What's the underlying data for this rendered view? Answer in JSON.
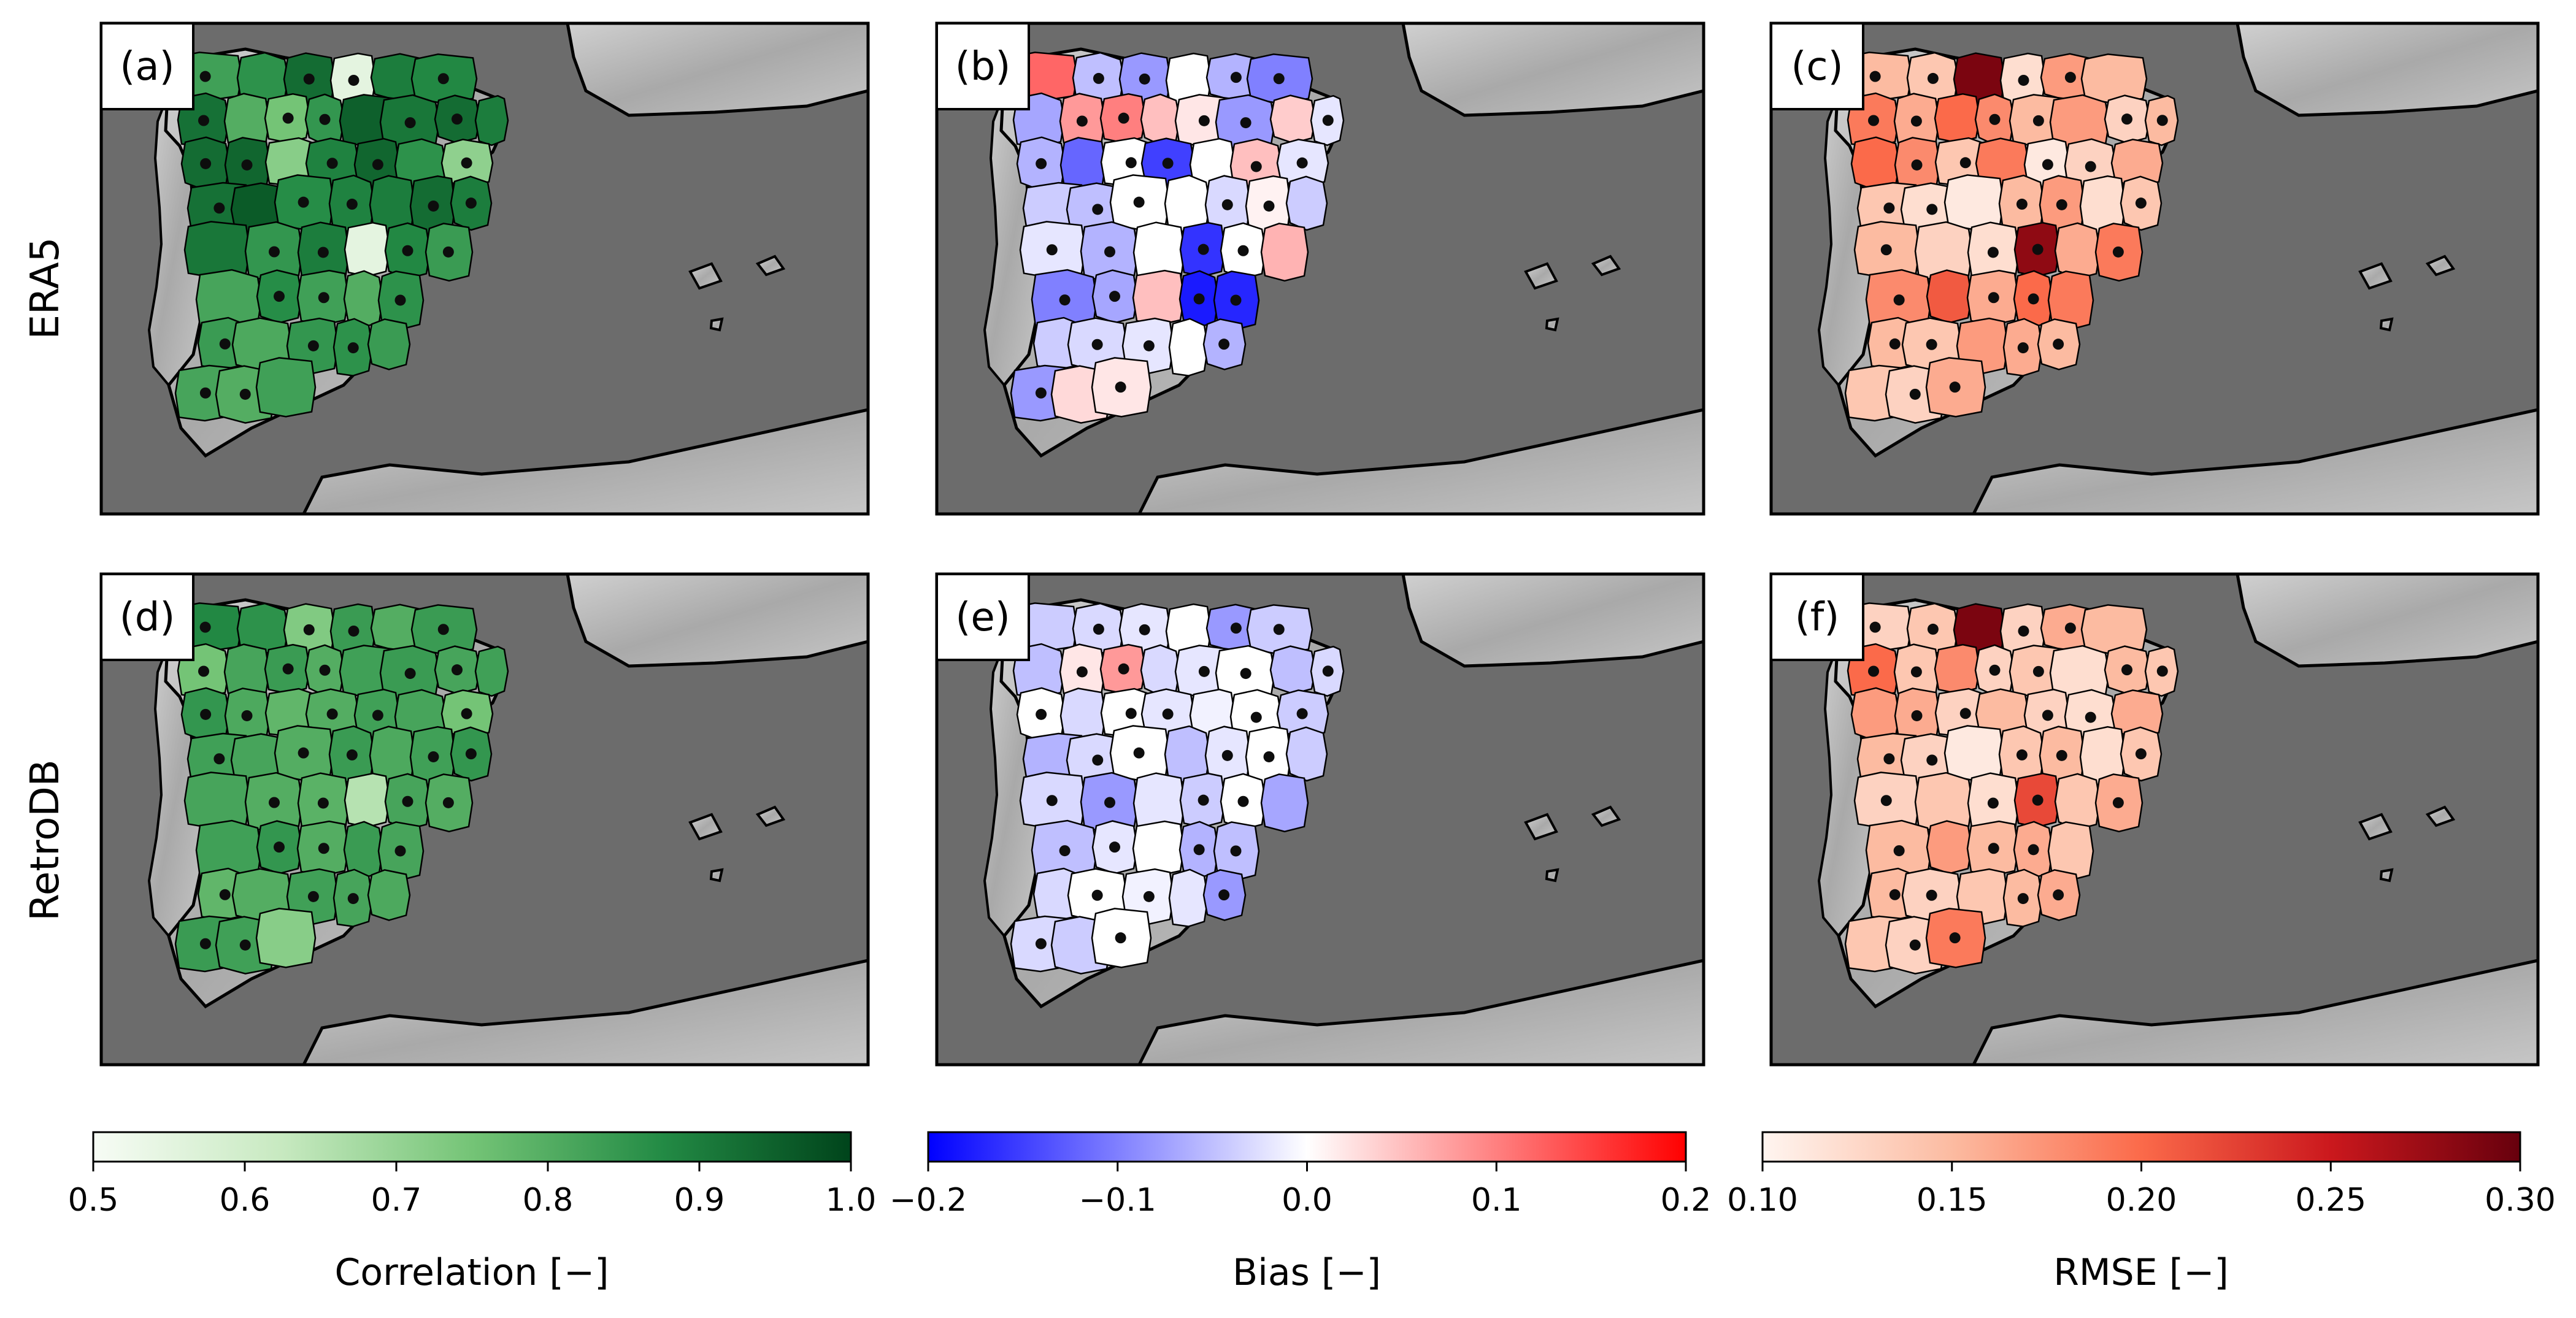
{
  "figure": {
    "row_labels": [
      "ERA5",
      "RetroDB"
    ],
    "colors": {
      "sea": "#6c6c6c",
      "land_terrain": "#b8b8b8",
      "border": "#000000",
      "dot": "#0d0d0d"
    }
  },
  "chart_data": [
    {
      "type": "heatmap",
      "title": "(a)",
      "dataset": "ERA5",
      "metric": "Correlation [−]",
      "colormap": "Greens",
      "vlim": [
        0.5,
        1.0
      ],
      "region_values": [
        0.83,
        0.86,
        0.93,
        0.55,
        0.9,
        0.88,
        0.92,
        0.8,
        0.75,
        0.85,
        0.95,
        0.91,
        0.93,
        0.9,
        0.93,
        0.94,
        0.72,
        0.89,
        0.94,
        0.86,
        0.71,
        0.92,
        0.96,
        0.87,
        0.89,
        0.9,
        0.93,
        0.9,
        0.91,
        0.85,
        0.9,
        0.55,
        0.88,
        0.84,
        0.82,
        0.87,
        0.83,
        0.8,
        0.86,
        0.84,
        0.81,
        0.85,
        0.86,
        0.84,
        0.82,
        0.8,
        0.83
      ]
    },
    {
      "type": "heatmap",
      "title": "(b)",
      "dataset": "ERA5",
      "metric": "Bias [−]",
      "colormap": "bwr",
      "vlim": [
        -0.2,
        0.2
      ],
      "region_values": [
        0.12,
        -0.05,
        -0.08,
        0.0,
        -0.06,
        -0.1,
        -0.07,
        0.08,
        0.1,
        0.05,
        0.02,
        -0.08,
        0.04,
        -0.02,
        -0.06,
        -0.12,
        0.0,
        -0.15,
        0.0,
        0.05,
        -0.02,
        -0.04,
        -0.05,
        0.0,
        0.0,
        -0.03,
        0.01,
        -0.04,
        -0.02,
        -0.06,
        0.0,
        -0.16,
        0.0,
        0.06,
        -0.1,
        -0.07,
        0.05,
        -0.18,
        -0.17,
        -0.04,
        -0.03,
        -0.02,
        0.0,
        -0.06,
        -0.08,
        0.03,
        0.02
      ]
    },
    {
      "type": "heatmap",
      "title": "(c)",
      "dataset": "ERA5",
      "metric": "RMSE [−]",
      "colormap": "Reds",
      "vlim": [
        0.1,
        0.3
      ],
      "region_values": [
        0.15,
        0.14,
        0.29,
        0.12,
        0.17,
        0.15,
        0.19,
        0.16,
        0.2,
        0.18,
        0.15,
        0.17,
        0.13,
        0.15,
        0.2,
        0.18,
        0.14,
        0.19,
        0.11,
        0.13,
        0.16,
        0.14,
        0.12,
        0.11,
        0.15,
        0.17,
        0.12,
        0.14,
        0.15,
        0.13,
        0.12,
        0.28,
        0.16,
        0.19,
        0.18,
        0.21,
        0.16,
        0.2,
        0.19,
        0.15,
        0.14,
        0.17,
        0.16,
        0.15,
        0.14,
        0.13,
        0.16
      ]
    },
    {
      "type": "heatmap",
      "title": "(d)",
      "dataset": "RetroDB",
      "metric": "Correlation [−]",
      "colormap": "Greens",
      "vlim": [
        0.5,
        1.0
      ],
      "region_values": [
        0.88,
        0.86,
        0.73,
        0.84,
        0.8,
        0.84,
        0.75,
        0.82,
        0.84,
        0.8,
        0.83,
        0.84,
        0.82,
        0.83,
        0.85,
        0.81,
        0.78,
        0.8,
        0.83,
        0.82,
        0.75,
        0.83,
        0.82,
        0.8,
        0.84,
        0.81,
        0.83,
        0.85,
        0.82,
        0.8,
        0.79,
        0.65,
        0.82,
        0.8,
        0.83,
        0.85,
        0.8,
        0.84,
        0.82,
        0.78,
        0.8,
        0.83,
        0.82,
        0.81,
        0.84,
        0.83,
        0.72
      ]
    },
    {
      "type": "heatmap",
      "title": "(e)",
      "dataset": "RetroDB",
      "metric": "Bias [−]",
      "colormap": "bwr",
      "vlim": [
        -0.2,
        0.2
      ],
      "region_values": [
        -0.04,
        -0.03,
        -0.02,
        0.0,
        -0.08,
        -0.04,
        -0.05,
        0.02,
        0.08,
        -0.03,
        -0.02,
        0.0,
        -0.05,
        -0.03,
        0.0,
        -0.03,
        0.0,
        -0.02,
        -0.01,
        0.0,
        -0.04,
        -0.06,
        -0.03,
        0.0,
        -0.05,
        -0.02,
        0.0,
        -0.04,
        -0.03,
        -0.08,
        -0.02,
        -0.04,
        0.0,
        -0.07,
        -0.05,
        -0.02,
        0.0,
        -0.06,
        -0.05,
        -0.03,
        0.0,
        -0.01,
        -0.02,
        -0.08,
        -0.03,
        -0.04,
        0.0
      ]
    },
    {
      "type": "heatmap",
      "title": "(f)",
      "dataset": "RetroDB",
      "metric": "RMSE [−]",
      "colormap": "Reds",
      "vlim": [
        0.1,
        0.3
      ],
      "region_values": [
        0.13,
        0.14,
        0.29,
        0.13,
        0.16,
        0.15,
        0.2,
        0.14,
        0.18,
        0.13,
        0.14,
        0.12,
        0.15,
        0.14,
        0.17,
        0.16,
        0.13,
        0.15,
        0.13,
        0.12,
        0.16,
        0.15,
        0.13,
        0.11,
        0.14,
        0.15,
        0.12,
        0.14,
        0.13,
        0.14,
        0.12,
        0.22,
        0.14,
        0.16,
        0.15,
        0.17,
        0.15,
        0.16,
        0.14,
        0.15,
        0.13,
        0.14,
        0.15,
        0.16,
        0.14,
        0.13,
        0.19
      ]
    }
  ],
  "colorbars": [
    {
      "label": "Correlation [−]",
      "colormap": "Greens",
      "vlim": [
        0.5,
        1.0
      ],
      "ticks": [
        0.5,
        0.6,
        0.7,
        0.8,
        0.9,
        1.0
      ],
      "tick_labels": [
        "0.5",
        "0.6",
        "0.7",
        "0.8",
        "0.9",
        "1.0"
      ]
    },
    {
      "label": "Bias [−]",
      "colormap": "bwr",
      "vlim": [
        -0.2,
        0.2
      ],
      "ticks": [
        -0.2,
        -0.1,
        0.0,
        0.1,
        0.2
      ],
      "tick_labels": [
        "−0.2",
        "−0.1",
        "0.0",
        "0.1",
        "0.2"
      ]
    },
    {
      "label": "RMSE [−]",
      "colormap": "Reds",
      "vlim": [
        0.1,
        0.3
      ],
      "ticks": [
        0.1,
        0.15,
        0.2,
        0.25,
        0.3
      ],
      "tick_labels": [
        "0.10",
        "0.15",
        "0.20",
        "0.25",
        "0.30"
      ]
    }
  ]
}
